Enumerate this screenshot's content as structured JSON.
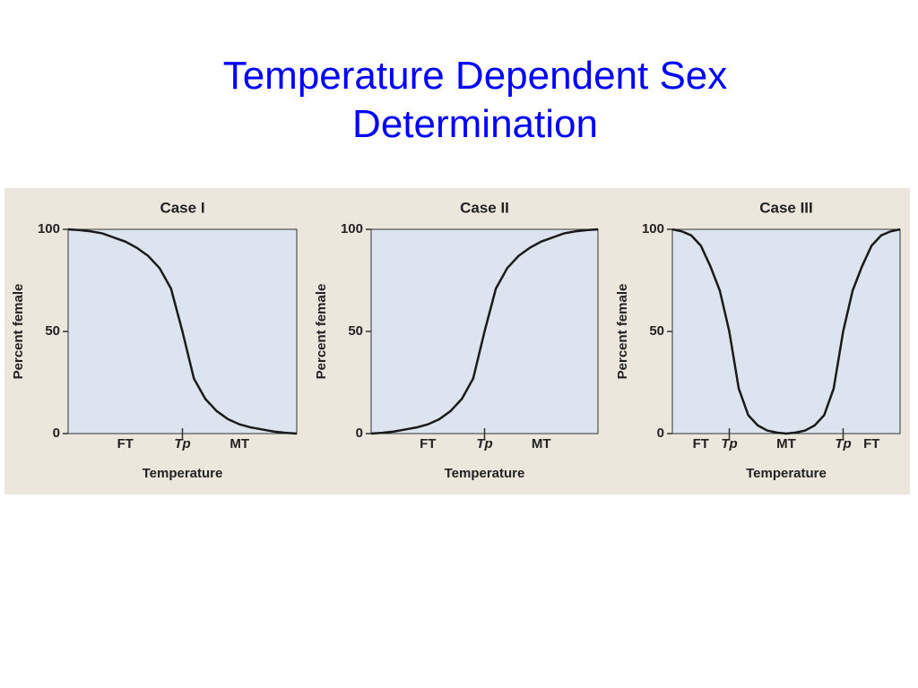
{
  "title": "Temperature Dependent Sex Determination",
  "chart_data": [
    {
      "type": "line",
      "title": "Case I",
      "ylabel": "Percent female",
      "xlabel": "Temperature",
      "categories": [
        null,
        null,
        null,
        null,
        null,
        "FT",
        null,
        null,
        null,
        null,
        "Tp",
        null,
        null,
        null,
        null,
        "MT",
        null,
        null,
        null,
        null,
        null
      ],
      "tick_categories": [
        "Tp"
      ],
      "values": [
        100,
        99.6,
        99,
        98,
        96,
        94,
        91,
        87,
        81,
        71,
        50,
        27,
        17,
        11,
        7,
        4.5,
        3,
        2,
        1,
        0.4,
        0
      ],
      "color": "#1a1a1a",
      "ylim": [
        0,
        100
      ],
      "yticks": [
        0,
        50,
        100
      ]
    },
    {
      "type": "line",
      "title": "Case II",
      "ylabel": "Percent female",
      "xlabel": "Temperature",
      "categories": [
        null,
        null,
        null,
        null,
        null,
        "FT",
        null,
        null,
        null,
        null,
        "Tp",
        null,
        null,
        null,
        null,
        "MT",
        null,
        null,
        null,
        null,
        null
      ],
      "tick_categories": [
        "Tp"
      ],
      "values": [
        0,
        0.4,
        1,
        2,
        3,
        4.5,
        7,
        11,
        17,
        27,
        50,
        71,
        81,
        87,
        91,
        94,
        96,
        98,
        99,
        99.6,
        100
      ],
      "color": "#1a1a1a",
      "ylim": [
        0,
        100
      ],
      "yticks": [
        0,
        50,
        100
      ]
    },
    {
      "type": "line",
      "title": "Case III",
      "ylabel": "Percent female",
      "xlabel": "Temperature",
      "categories": [
        null,
        null,
        null,
        "FT",
        null,
        null,
        "Tp",
        null,
        null,
        null,
        null,
        null,
        "MT",
        null,
        null,
        null,
        null,
        null,
        "Tp",
        null,
        null,
        "FT",
        null,
        null,
        null
      ],
      "tick_categories": [
        "Tp"
      ],
      "values": [
        100,
        99,
        97,
        92,
        82,
        70,
        50,
        22,
        9,
        4,
        1.5,
        0.5,
        0,
        0.5,
        1.5,
        4,
        9,
        22,
        50,
        70,
        82,
        92,
        97,
        99,
        100
      ],
      "color": "#1a1a1a",
      "ylim": [
        0,
        100
      ],
      "yticks": [
        0,
        50,
        100
      ]
    }
  ]
}
